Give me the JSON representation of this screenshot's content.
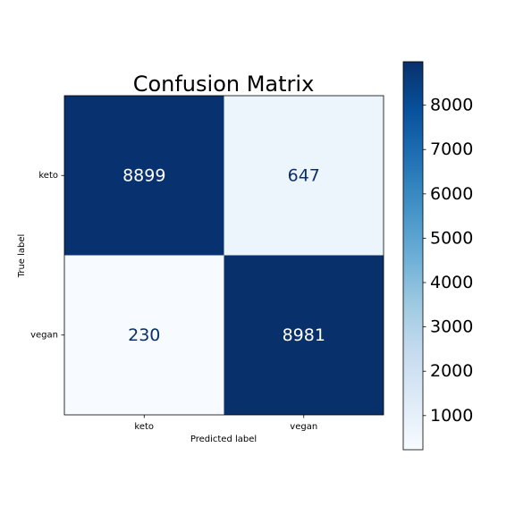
{
  "chart_data": {
    "type": "heatmap",
    "title": "Confusion Matrix",
    "xlabel": "Predicted label",
    "ylabel": "True label",
    "x_categories": [
      "keto",
      "vegan"
    ],
    "y_categories": [
      "keto",
      "vegan"
    ],
    "matrix": [
      [
        8899,
        647
      ],
      [
        230,
        8981
      ]
    ],
    "colormap": "Blues",
    "colorbar": {
      "min": 230,
      "max": 8981,
      "ticks": [
        1000,
        2000,
        3000,
        4000,
        5000,
        6000,
        7000,
        8000
      ]
    },
    "grid": false,
    "legend": "none"
  },
  "colors": {
    "low": "#f7fbff",
    "high": "#08306b",
    "text_on_dark": "#ffffff",
    "text_on_light": "#08306b"
  }
}
